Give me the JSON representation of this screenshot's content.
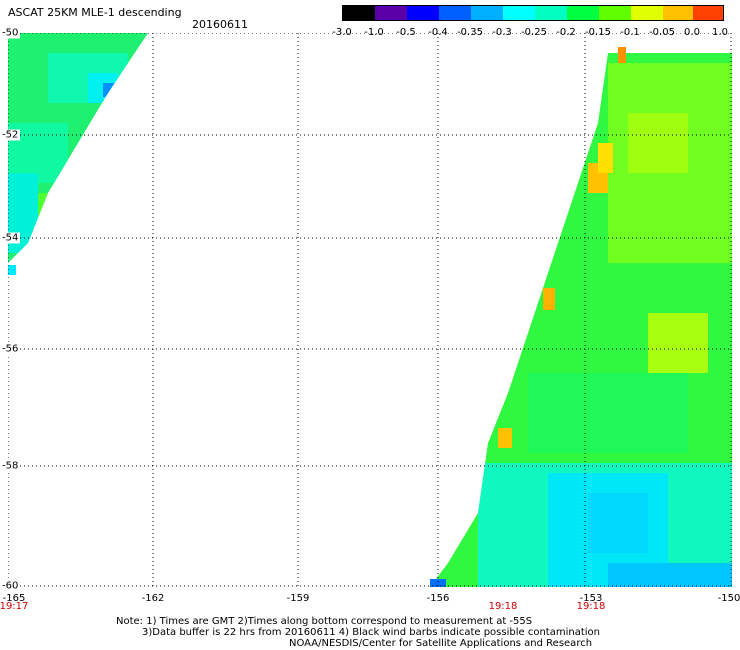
{
  "header": {
    "title": "ASCAT 25KM MLE-1 descending",
    "date": "20160611"
  },
  "colorbar": {
    "tick_labels": [
      "-3.0",
      "-1.0",
      "-0.5",
      "-0.4",
      "-0.35",
      "-0.3",
      "-0.25",
      "-0.2",
      "-0.15",
      "-0.1",
      "-0.05",
      "0.0",
      "1.0"
    ],
    "colors": [
      "#000000",
      "#5a00a8",
      "#0000ff",
      "#0060ff",
      "#00b0ff",
      "#00ffff",
      "#00ffc0",
      "#00ff40",
      "#60ff00",
      "#e0ff00",
      "#ffc000",
      "#ff4000"
    ]
  },
  "map": {
    "lat_labels": [
      "-50",
      "-52",
      "-54",
      "-56",
      "-58",
      "-60"
    ],
    "lon_labels": [
      "-165",
      "-162",
      "-159",
      "-156",
      "-153",
      "-150"
    ],
    "time_labels": [
      "19:17",
      "19:18",
      "19:18"
    ]
  },
  "footer": {
    "line1": "Note: 1) Times are GMT 2)Times along bottom correspond to measurement at -55S",
    "line2": "3)Data buffer is 22 hrs from 20160611 4) Black wind barbs indicate possible contamination",
    "line3": "NOAA/NESDIS/Center for Satellite Applications and Research"
  }
}
